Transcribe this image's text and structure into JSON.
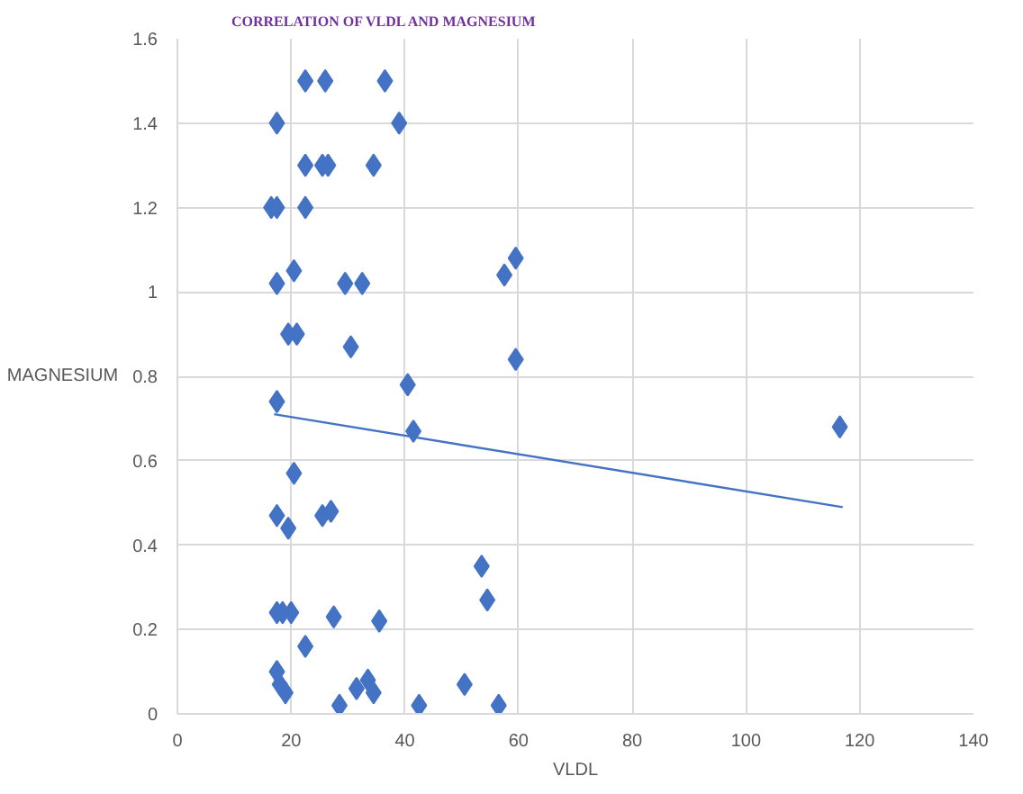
{
  "chart_data": {
    "type": "scatter",
    "title": "CORRELATION OF VLDL AND MAGNESIUM",
    "xlabel": "VLDL",
    "ylabel": "MAGNESIUM",
    "xlim": [
      0,
      140
    ],
    "xticks": [
      0,
      20,
      40,
      60,
      80,
      100,
      120,
      140
    ],
    "ylim": [
      0,
      1.6
    ],
    "yticks": [
      0,
      0.2,
      0.4,
      0.6,
      0.8,
      1,
      1.2,
      1.4,
      1.6
    ],
    "grid": true,
    "series": [
      {
        "color": "#4472c4",
        "marker": "diamond",
        "x": [
          22.5,
          26,
          36.5,
          17.5,
          39,
          22.5,
          25.5,
          26.5,
          34.5,
          16.5,
          17.5,
          22.5,
          59.5,
          57.5,
          20.5,
          17.5,
          29.5,
          32.5,
          19.5,
          21,
          30.5,
          59.5,
          40.5,
          17.5,
          41.5,
          116.5,
          20.5,
          17.5,
          19.5,
          25.5,
          27,
          53.5,
          54.5,
          17.5,
          18.5,
          20,
          27.5,
          35.5,
          22.5,
          17.5,
          18,
          19,
          28.5,
          31.5,
          33.5,
          34.5,
          42.5,
          50.5,
          56.5
        ],
        "values": [
          1.5,
          1.5,
          1.5,
          1.4,
          1.4,
          1.3,
          1.3,
          1.3,
          1.3,
          1.2,
          1.2,
          1.2,
          1.08,
          1.04,
          1.05,
          1.02,
          1.02,
          1.02,
          0.9,
          0.9,
          0.87,
          0.84,
          0.78,
          0.74,
          0.67,
          0.68,
          0.57,
          0.47,
          0.44,
          0.47,
          0.48,
          0.35,
          0.27,
          0.24,
          0.24,
          0.24,
          0.23,
          0.22,
          0.16,
          0.1,
          0.07,
          0.05,
          0.02,
          0.06,
          0.08,
          0.05,
          0.02,
          0.07,
          0.02
        ]
      },
      {
        "type": "line",
        "marker": "none",
        "color": "#4472c4",
        "x": [
          17,
          117
        ],
        "values": [
          0.71,
          0.49
        ]
      }
    ]
  }
}
